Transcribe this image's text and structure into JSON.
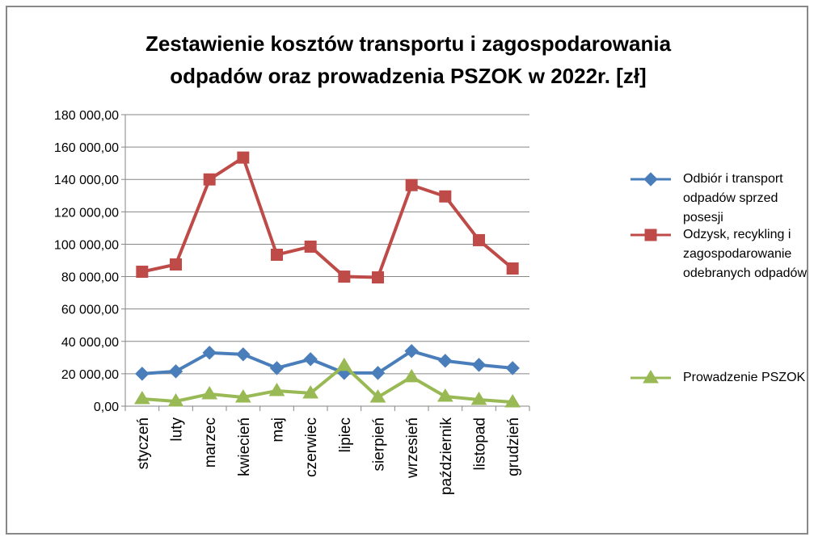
{
  "chart_data": {
    "type": "line",
    "title": "Zestawienie kosztów transportu i zagospodarowania odpadów oraz prowadzenia PSZOK w 2022r. [zł]",
    "categories": [
      "styczeń",
      "luty",
      "marzec",
      "kwiecień",
      "maj",
      "czerwiec",
      "lipiec",
      "sierpień",
      "wrzesień",
      "październik",
      "listopad",
      "grudzień"
    ],
    "series": [
      {
        "name": "Odbiór i transport odpadów sprzed posesji",
        "color": "#4a7ebb",
        "marker": "diamond",
        "values": [
          20000,
          21500,
          33000,
          32000,
          23500,
          29000,
          20500,
          20500,
          34000,
          28000,
          25500,
          23500
        ]
      },
      {
        "name": "Odzysk, recykling i zagospodarowanie odebranych odpadów",
        "color": "#be4b48",
        "marker": "square",
        "values": [
          83000,
          87500,
          140000,
          153500,
          93500,
          98500,
          80000,
          79500,
          136500,
          129500,
          102500,
          85000
        ]
      },
      {
        "name": "Prowadzenie PSZOK",
        "color": "#98b954",
        "marker": "triangle",
        "values": [
          4500,
          3000,
          7500,
          5500,
          9500,
          8000,
          25000,
          5500,
          18000,
          6000,
          4000,
          2500
        ]
      }
    ],
    "ylim": [
      0,
      180000
    ],
    "yticks": [
      {
        "value": 0,
        "label": "0,00"
      },
      {
        "value": 20000,
        "label": "20 000,00"
      },
      {
        "value": 40000,
        "label": "40 000,00"
      },
      {
        "value": 60000,
        "label": "60 000,00"
      },
      {
        "value": 80000,
        "label": "80 000,00"
      },
      {
        "value": 100000,
        "label": "100 000,00"
      },
      {
        "value": 120000,
        "label": "120 000,00"
      },
      {
        "value": 140000,
        "label": "140 000,00"
      },
      {
        "value": 160000,
        "label": "160 000,00"
      },
      {
        "value": 180000,
        "label": "180 000,00"
      }
    ],
    "grid": true,
    "legend": "right"
  }
}
